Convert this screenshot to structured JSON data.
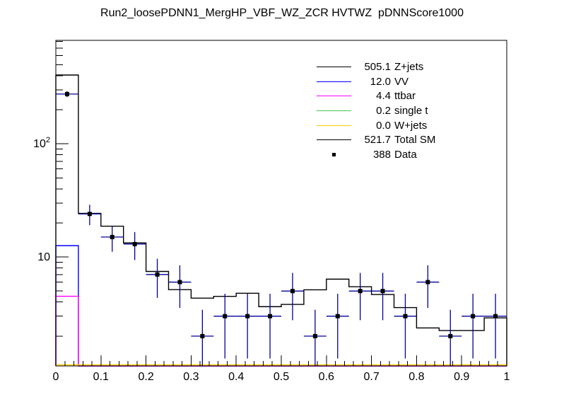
{
  "title": "Run2_loosePDNN1_MergHP_VBF_WZ_ZCR HVTWZ  pDNNScore1000",
  "legend": {
    "entries": [
      {
        "value": "505.1",
        "label": "Z+jets",
        "color": "#000000",
        "style": "line"
      },
      {
        "value": "12.0",
        "label": "VV",
        "color": "#0000ff",
        "style": "line"
      },
      {
        "value": "4.4",
        "label": "ttbar",
        "color": "#ff00ff",
        "style": "line"
      },
      {
        "value": "0.2",
        "label": "single t",
        "color": "#4cc552",
        "style": "line"
      },
      {
        "value": "0.0",
        "label": "W+jets",
        "color": "#ffcc00",
        "style": "line"
      },
      {
        "value": "521.7",
        "label": "Total SM",
        "color": "#000000",
        "style": "line"
      },
      {
        "value": "388",
        "label": "Data",
        "color": "#000000",
        "style": "marker"
      }
    ]
  },
  "chart_data": {
    "type": "line",
    "subtype": "step-histogram-with-data-points",
    "title": "Run2_loosePDNN1_MergHP_VBF_WZ_ZCR HVTWZ  pDNNScore1000",
    "grid": false,
    "legend_position": "top-right-inside",
    "x_axis": {
      "min": 0,
      "max": 1,
      "n_bins": 20,
      "bin_width": 0.05,
      "major_ticks": [
        0,
        0.1,
        0.2,
        0.3,
        0.4,
        0.5,
        0.6,
        0.7,
        0.8,
        0.9,
        1
      ],
      "tick_labels": [
        "0",
        "0.1",
        "0.2",
        "0.3",
        "0.4",
        "0.5",
        "0.6",
        "0.7",
        "0.8",
        "0.9",
        "1"
      ],
      "minor_tick_step": 0.02,
      "label": ""
    },
    "y_axis": {
      "scale": "log",
      "min": 1.09,
      "max": 820,
      "major_ticks": [
        10,
        100
      ],
      "tick_labels": [
        {
          "value": 10,
          "base": "10",
          "sup": ""
        },
        {
          "value": 100,
          "base": "10",
          "sup": "2"
        }
      ],
      "label": ""
    },
    "series": [
      {
        "name": "Total SM",
        "yield": 521.7,
        "color": "#000000",
        "draw": "step",
        "values": [
          405,
          24.3,
          18.7,
          13.3,
          7.45,
          5.15,
          4.33,
          4.49,
          4.78,
          3.64,
          3.81,
          5.13,
          6.37,
          5.46,
          4.66,
          3.57,
          2.36,
          2.24,
          2.24,
          2.9
        ]
      },
      {
        "name": "Z+jets",
        "yield": 505.1,
        "color": "#000000",
        "draw": "none",
        "note": "visually overlaps Total SM histogram"
      },
      {
        "name": "VV",
        "yield": 12.0,
        "color": "#0000ff",
        "draw": "step",
        "values": [
          12.6,
          0,
          0,
          0,
          0,
          0,
          0,
          0,
          0,
          0,
          0,
          0,
          0,
          0,
          0,
          0,
          0,
          0,
          0,
          0
        ]
      },
      {
        "name": "ttbar",
        "yield": 4.4,
        "color": "#ff00ff",
        "draw": "step",
        "values": [
          4.5,
          0,
          0,
          0,
          0,
          0,
          0,
          0,
          0,
          0,
          0,
          0,
          0,
          0,
          0,
          0,
          0,
          0,
          0,
          0
        ]
      },
      {
        "name": "single t",
        "yield": 0.2,
        "color": "#4cc552",
        "draw": "none",
        "note": "below visible y range"
      },
      {
        "name": "W+jets",
        "yield": 0.0,
        "color": "#ffcc00",
        "draw": "along-x-axis"
      }
    ],
    "data_points": {
      "name": "Data",
      "total": 388,
      "marker": "filled-square",
      "marker_color": "#000000",
      "error_bar_color": "#00009b",
      "errors": "sqrt(n), clipped to axis range",
      "bin_centers": [
        0.025,
        0.075,
        0.125,
        0.175,
        0.225,
        0.275,
        0.325,
        0.375,
        0.425,
        0.475,
        0.525,
        0.575,
        0.625,
        0.675,
        0.725,
        0.775,
        0.825,
        0.875,
        0.925,
        0.975
      ],
      "values": [
        275,
        24,
        15,
        13,
        7,
        6,
        2,
        3,
        3,
        3,
        5,
        2,
        3,
        5,
        5,
        3,
        6,
        2,
        3,
        3
      ]
    }
  }
}
